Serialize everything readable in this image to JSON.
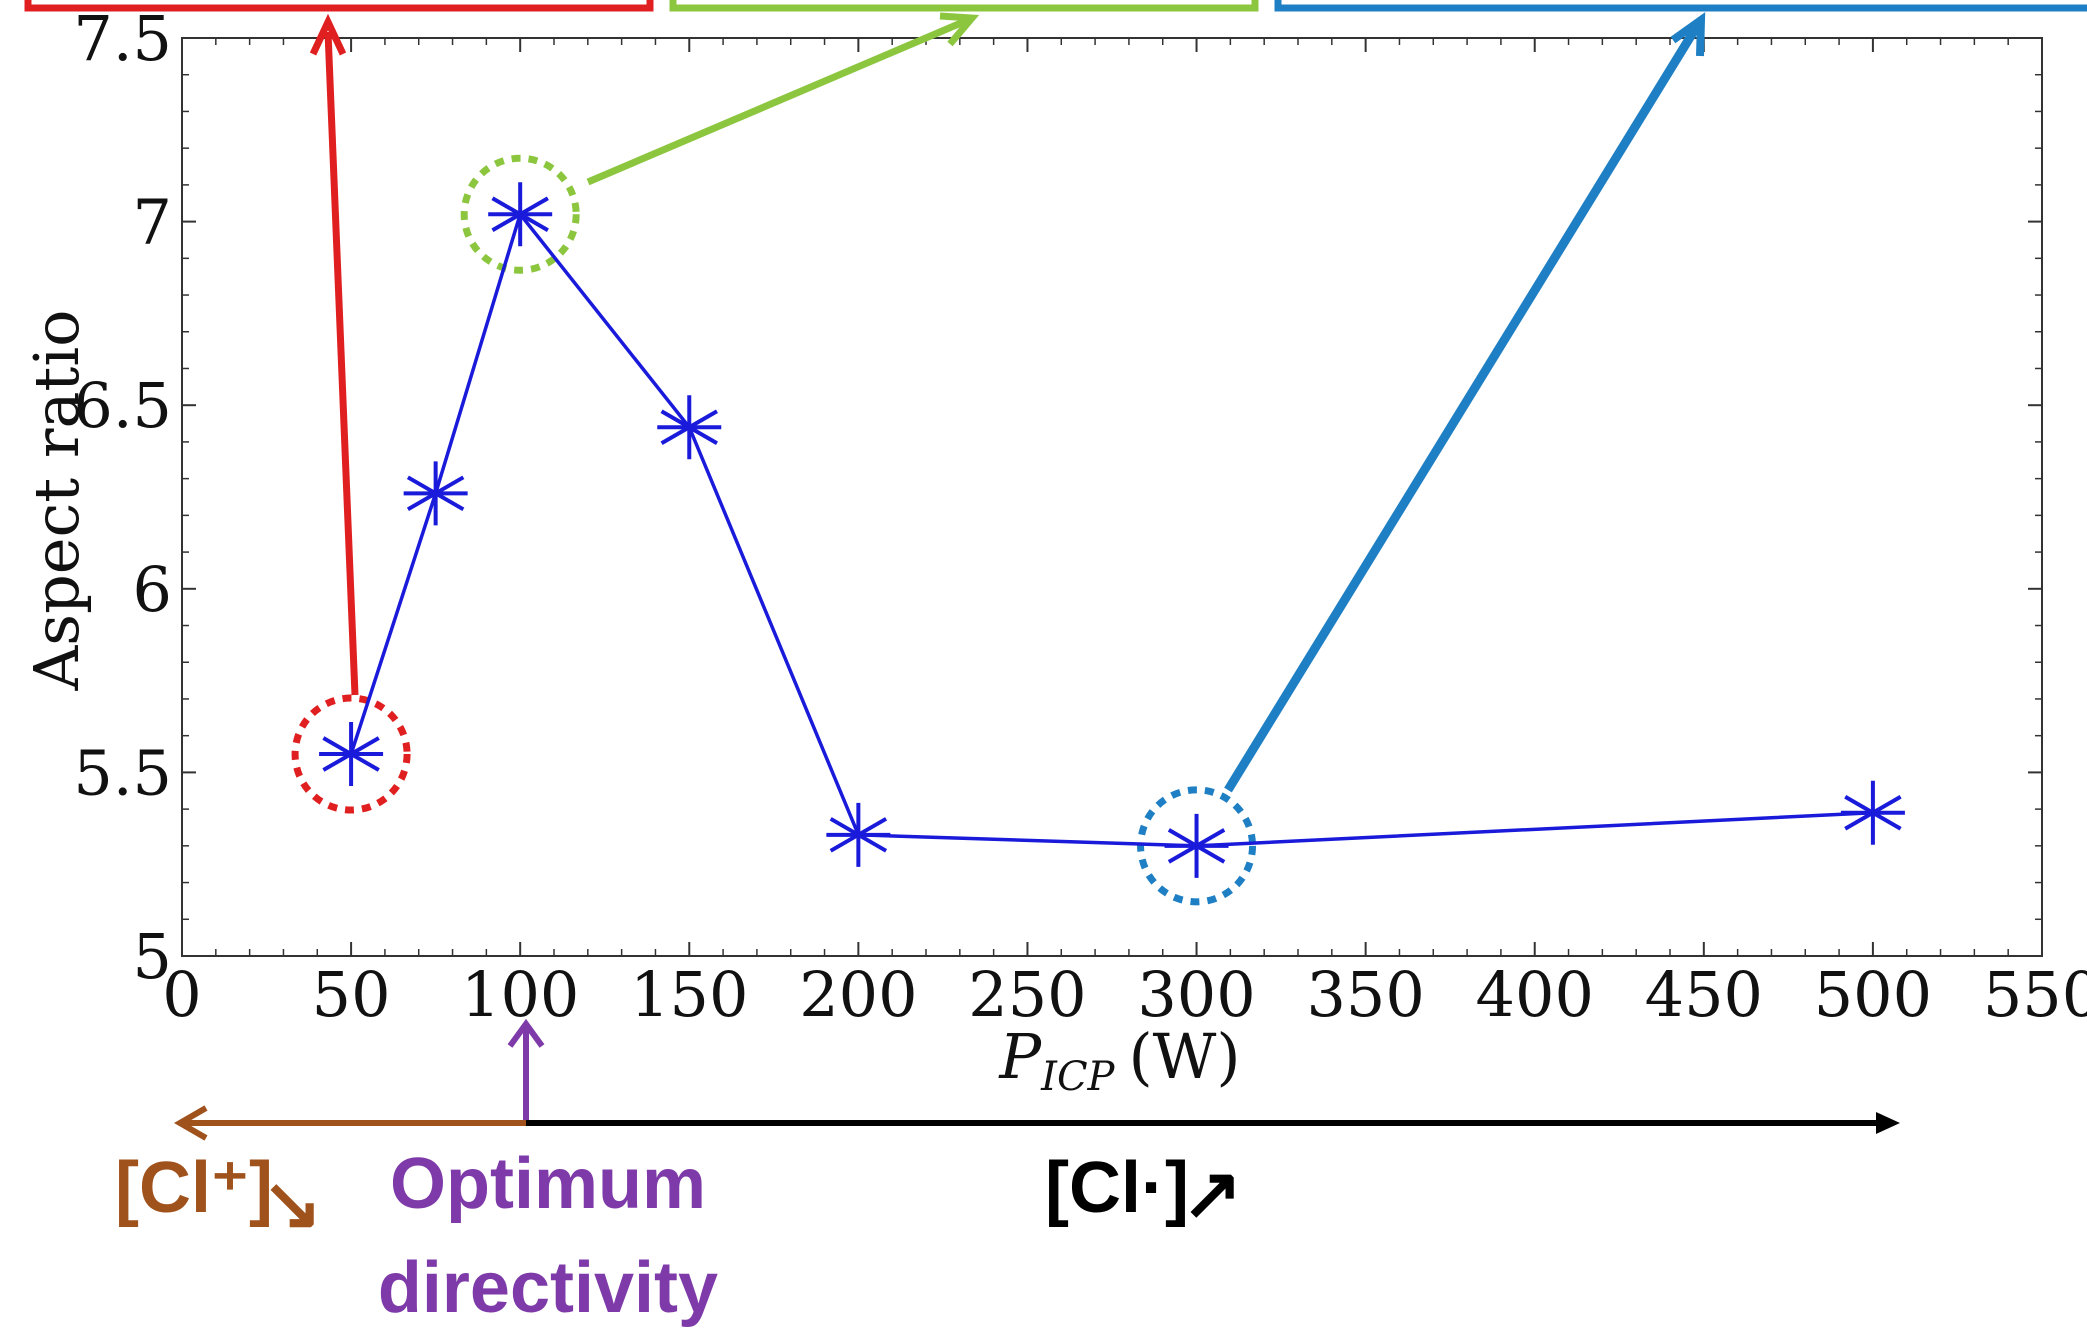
{
  "chart_data": {
    "type": "line",
    "xlabel_main": "P",
    "xlabel_sub": "ICP",
    "xlabel_unit": "(W)",
    "ylabel": "Aspect ratio",
    "xlim": [
      0,
      550
    ],
    "ylim": [
      5,
      7.5
    ],
    "xticks": [
      0,
      50,
      100,
      150,
      200,
      250,
      300,
      350,
      400,
      450,
      500,
      550
    ],
    "yticks": [
      5,
      5.5,
      6,
      6.5,
      7,
      7.5
    ],
    "ytick_labels": [
      "5",
      "5.5",
      "6",
      "6.5",
      "7",
      "7.5"
    ],
    "grid": false,
    "series": [
      {
        "color": "#1a1adb",
        "marker": "asterisk",
        "x": [
          50,
          75,
          100,
          150,
          200,
          300,
          500
        ],
        "y": [
          5.55,
          6.26,
          7.02,
          6.44,
          5.33,
          5.3,
          5.39
        ]
      }
    ],
    "highlights": [
      {
        "x": 50,
        "y": 5.55,
        "color": "#e02020"
      },
      {
        "x": 100,
        "y": 7.02,
        "color": "#8cc63f"
      },
      {
        "x": 300,
        "y": 5.3,
        "color": "#1f7fc4"
      }
    ]
  },
  "annotations": {
    "cl_ion_text": "[Cl⁺]",
    "cl_ion_arrow": "↘",
    "optimum_line1": "Optimum",
    "optimum_line2": "directivity",
    "cl_radical_text": "[Cl·]",
    "cl_radical_arrow": "↗"
  },
  "colors": {
    "red": "#e02020",
    "green": "#8cc63f",
    "blue": "#1f7fc4",
    "brown": "#a0521c",
    "purple": "#7e3aa8",
    "black": "#000000"
  }
}
